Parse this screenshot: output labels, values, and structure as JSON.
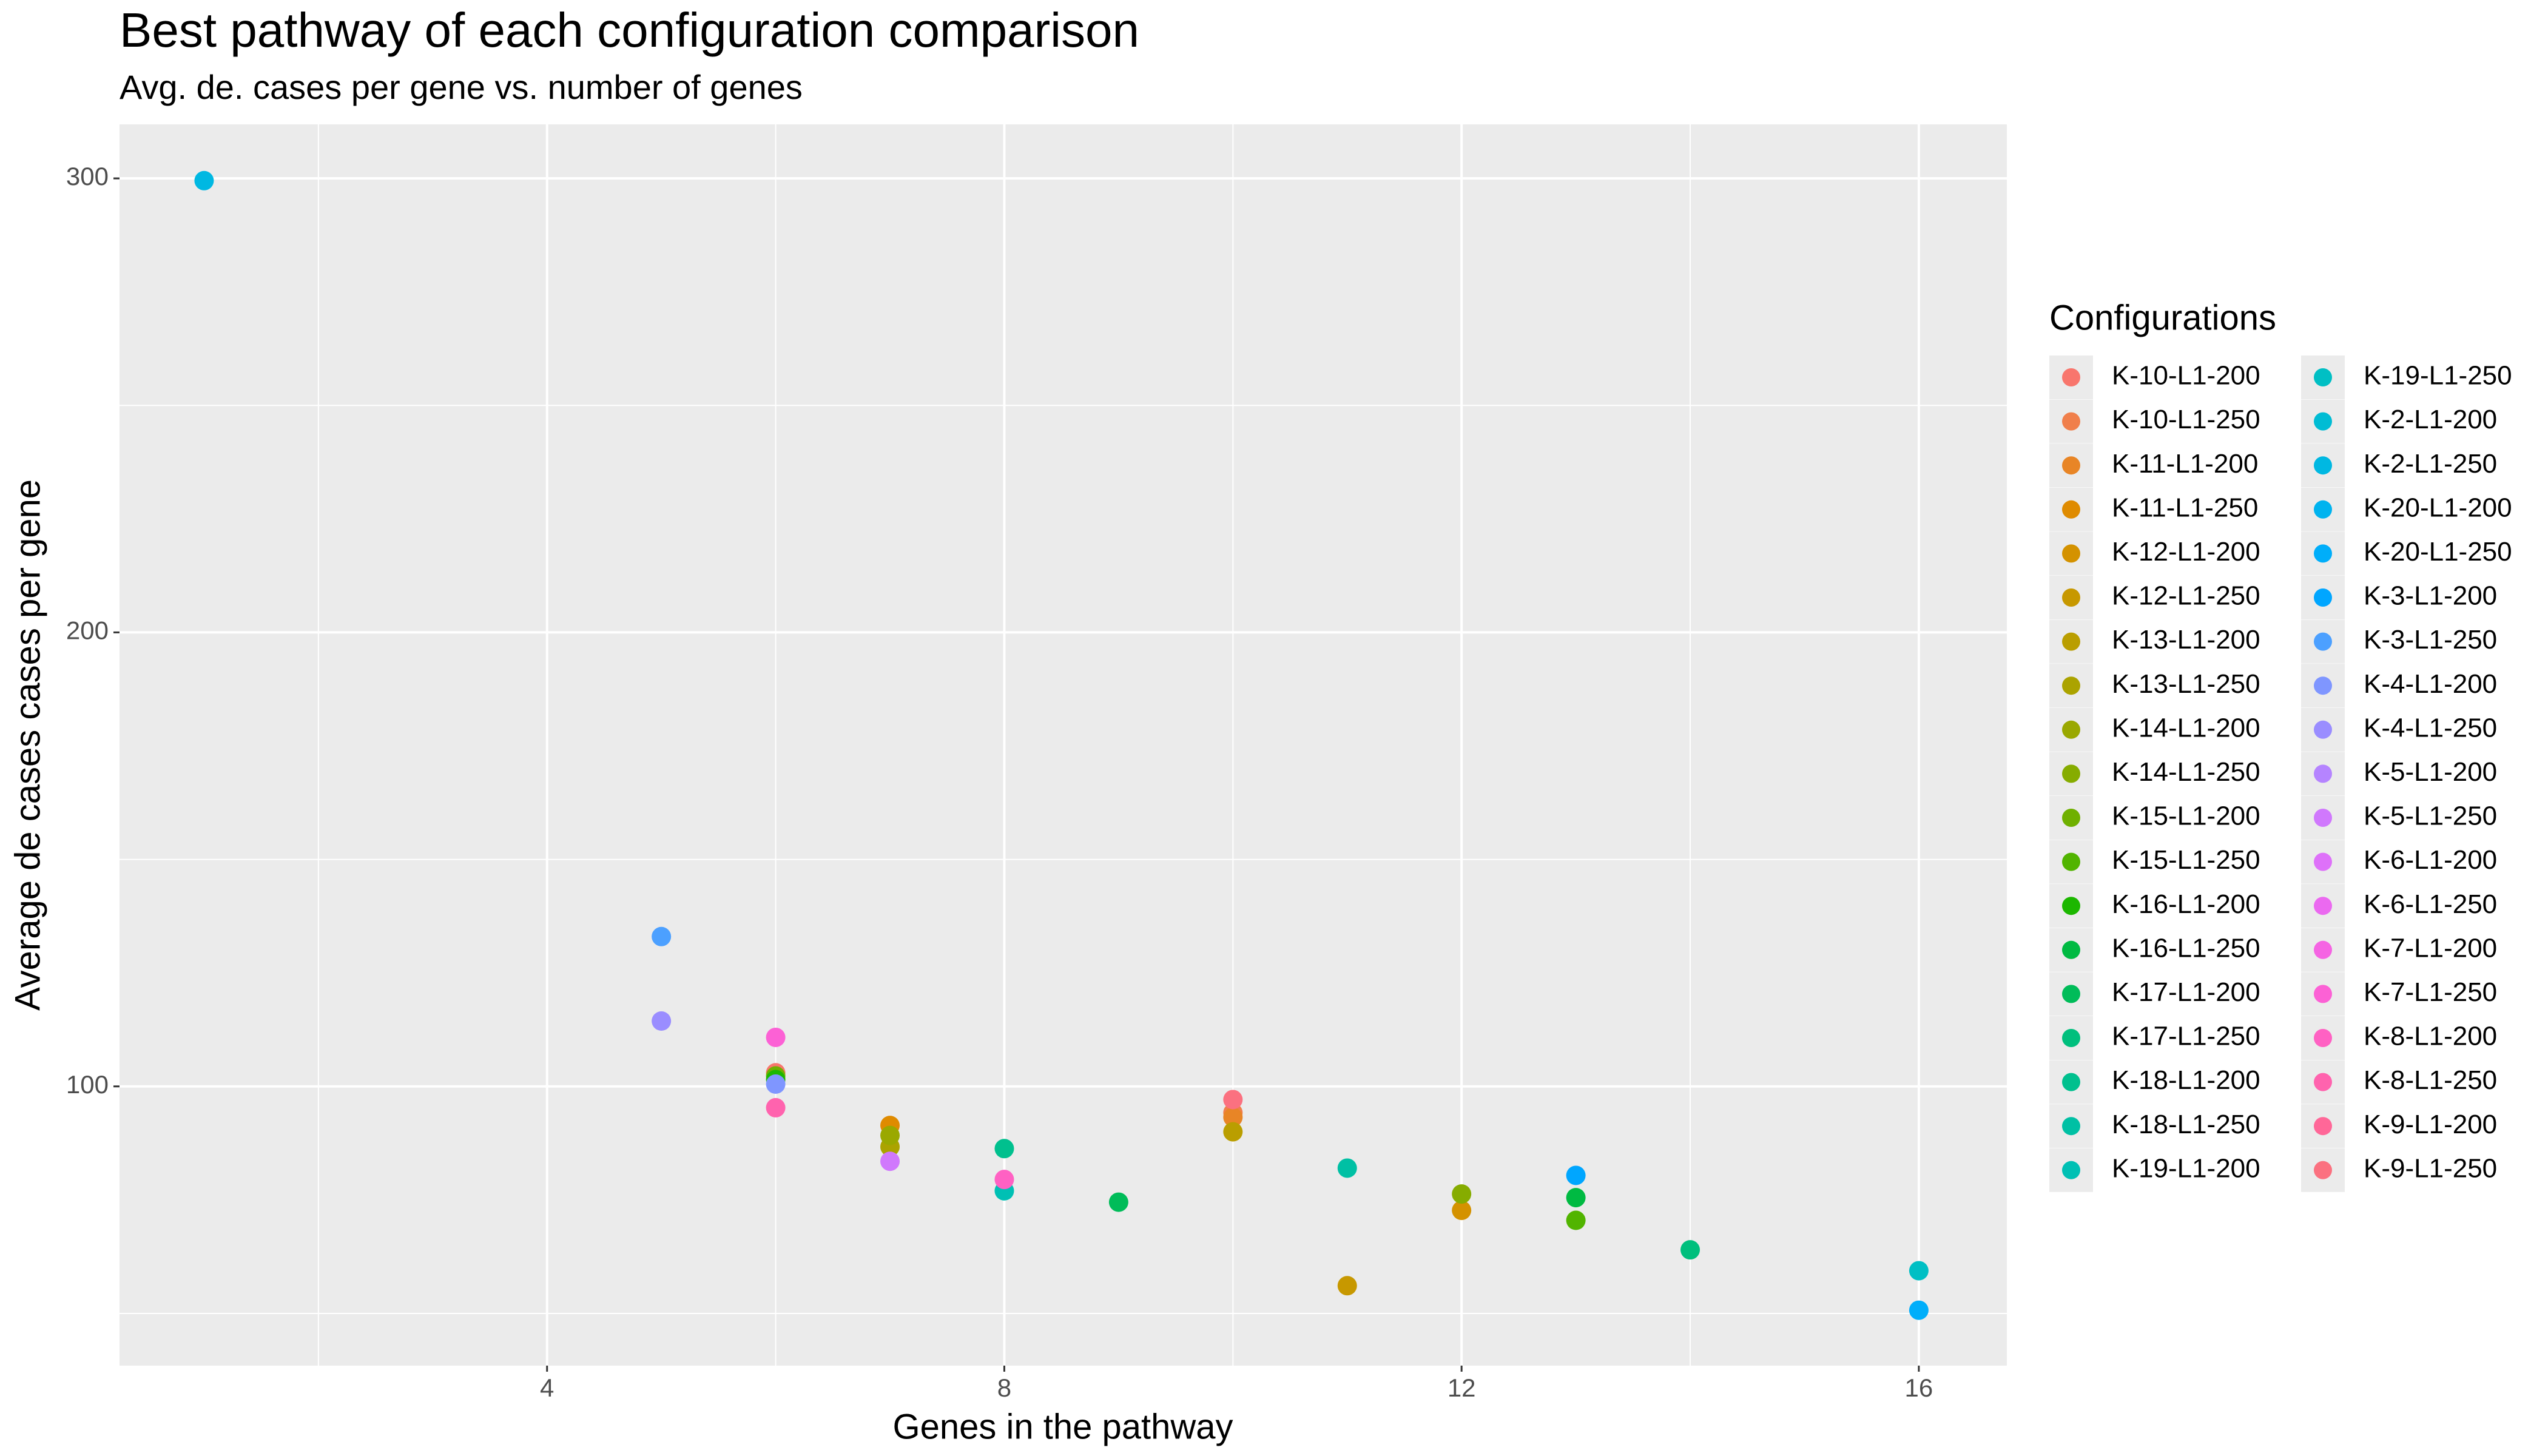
{
  "chart_data": {
    "type": "scatter",
    "title": "Best pathway of each configuration comparison",
    "subtitle": "Avg. de. cases per gene vs. number of genes",
    "x_label": "Genes in the pathway",
    "y_label": "Average de cases cases per gene",
    "legend_title": "Configurations",
    "xlim": [
      0.26,
      16.77
    ],
    "ylim": [
      38.5,
      311.9
    ],
    "xticks": [
      4,
      8,
      12,
      16
    ],
    "yticks": [
      100,
      200,
      300
    ],
    "xminor": [
      2,
      6,
      10,
      14
    ],
    "yminor": [
      50,
      150,
      250
    ],
    "grid": true,
    "legend": "right",
    "series": [
      {
        "name": "K-10-L1-200",
        "color": "#F8766D",
        "x": [
          6
        ],
        "y": [
          103
        ]
      },
      {
        "name": "K-10-L1-250",
        "color": "#F07F4B",
        "x": [
          10
        ],
        "y": [
          94.2
        ]
      },
      {
        "name": "K-11-L1-200",
        "color": "#E88526",
        "x": [
          10
        ],
        "y": [
          93.2
        ]
      },
      {
        "name": "K-11-L1-250",
        "color": "#DF8B00",
        "x": [
          7
        ],
        "y": [
          91.4
        ]
      },
      {
        "name": "K-12-L1-200",
        "color": "#D49200",
        "x": [
          12
        ],
        "y": [
          72.7
        ]
      },
      {
        "name": "K-12-L1-250",
        "color": "#C79800",
        "x": [
          11
        ],
        "y": [
          56.1
        ]
      },
      {
        "name": "K-13-L1-200",
        "color": "#BA9E00",
        "x": [
          10
        ],
        "y": [
          90
        ]
      },
      {
        "name": "K-13-L1-250",
        "color": "#ABA300",
        "x": [
          7
        ],
        "y": [
          86.7
        ]
      },
      {
        "name": "K-14-L1-200",
        "color": "#9AA800",
        "x": [
          7
        ],
        "y": [
          89.2
        ]
      },
      {
        "name": "K-14-L1-250",
        "color": "#86AC00",
        "x": [
          12
        ],
        "y": [
          76.3
        ]
      },
      {
        "name": "K-15-L1-200",
        "color": "#6FB000",
        "x": [
          6
        ],
        "y": [
          102.3
        ]
      },
      {
        "name": "K-15-L1-250",
        "color": "#51B400",
        "x": [
          13
        ],
        "y": [
          70.5
        ]
      },
      {
        "name": "K-16-L1-200",
        "color": "#1CB700",
        "x": [
          6
        ],
        "y": [
          101.5
        ]
      },
      {
        "name": "K-16-L1-250",
        "color": "#00BA42",
        "x": [
          13
        ],
        "y": [
          75.5
        ]
      },
      {
        "name": "K-17-L1-200",
        "color": "#00BC59",
        "x": [
          9
        ],
        "y": [
          74.5
        ]
      },
      {
        "name": "K-17-L1-250",
        "color": "#00BF7D",
        "x": [
          14
        ],
        "y": [
          64
        ]
      },
      {
        "name": "K-18-L1-200",
        "color": "#00C08E",
        "x": [
          8
        ],
        "y": [
          86.3
        ]
      },
      {
        "name": "K-18-L1-250",
        "color": "#00C0A4",
        "x": [
          11
        ],
        "y": [
          82
        ]
      },
      {
        "name": "K-19-L1-200",
        "color": "#00C0B4",
        "x": [
          8
        ],
        "y": [
          77
        ]
      },
      {
        "name": "K-19-L1-250",
        "color": "#00BFC4",
        "x": [
          16
        ],
        "y": [
          59.4
        ]
      },
      {
        "name": "K-2-L1-200",
        "color": "#00BCD4",
        "x": [],
        "y": []
      },
      {
        "name": "K-2-L1-250",
        "color": "#00B8E2",
        "x": [
          1
        ],
        "y": [
          299.5
        ]
      },
      {
        "name": "K-20-L1-200",
        "color": "#00B3EF",
        "x": [],
        "y": []
      },
      {
        "name": "K-20-L1-250",
        "color": "#00AEFA",
        "x": [
          16
        ],
        "y": [
          50.7
        ]
      },
      {
        "name": "K-3-L1-200",
        "color": "#00A6FF",
        "x": [
          13
        ],
        "y": [
          80.4
        ]
      },
      {
        "name": "K-3-L1-250",
        "color": "#4CA0FF",
        "x": [
          5
        ],
        "y": [
          133
        ]
      },
      {
        "name": "K-4-L1-200",
        "color": "#7F96FF",
        "x": [
          6
        ],
        "y": [
          100.5
        ]
      },
      {
        "name": "K-4-L1-250",
        "color": "#9A8DFF",
        "x": [
          5
        ],
        "y": [
          114.4
        ]
      },
      {
        "name": "K-5-L1-200",
        "color": "#B584FF",
        "x": [],
        "y": []
      },
      {
        "name": "K-5-L1-250",
        "color": "#D078FD",
        "x": [
          7
        ],
        "y": [
          83.5
        ]
      },
      {
        "name": "K-6-L1-200",
        "color": "#DE71F9",
        "x": [],
        "y": []
      },
      {
        "name": "K-6-L1-250",
        "color": "#EB69F0",
        "x": [],
        "y": []
      },
      {
        "name": "K-7-L1-200",
        "color": "#F564E3",
        "x": [],
        "y": []
      },
      {
        "name": "K-7-L1-250",
        "color": "#FC61D5",
        "x": [
          6
        ],
        "y": [
          110.8
        ]
      },
      {
        "name": "K-8-L1-200",
        "color": "#FF61C3",
        "x": [
          8
        ],
        "y": [
          79.5
        ]
      },
      {
        "name": "K-8-L1-250",
        "color": "#FF63AE",
        "x": [
          6
        ],
        "y": [
          95.3
        ]
      },
      {
        "name": "K-9-L1-200",
        "color": "#FF6798",
        "x": [],
        "y": []
      },
      {
        "name": "K-9-L1-250",
        "color": "#FB7180",
        "x": [
          10
        ],
        "y": [
          97.1
        ]
      }
    ]
  }
}
